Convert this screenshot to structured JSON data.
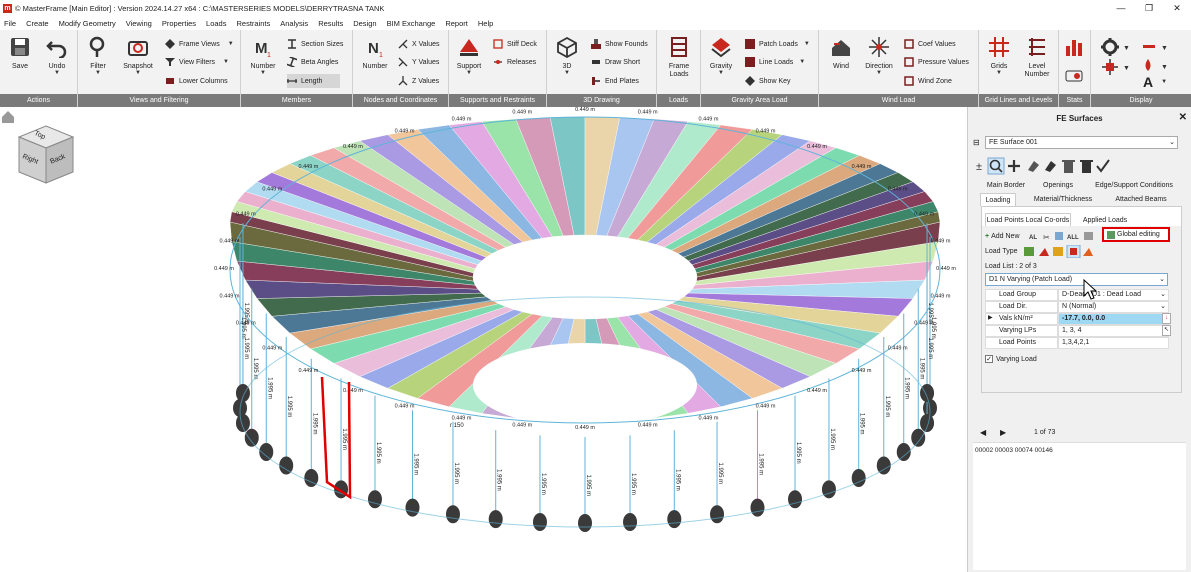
{
  "window": {
    "title": "© MasterFrame [Main Editor] : Version 2024.14.27 x64 : C:\\MASTERSERIES MODELS\\DERRYTRASNA TANK",
    "app_icon": "m",
    "controls": [
      "—",
      "❐",
      "✕"
    ]
  },
  "menu": [
    "File",
    "Create",
    "Modify Geometry",
    "Viewing",
    "Properties",
    "Loads",
    "Restraints",
    "Analysis",
    "Results",
    "Design",
    "BIM Exchange",
    "Report",
    "Help"
  ],
  "ribbon": {
    "groups": [
      "Actions",
      "Views and Filtering",
      "Members",
      "Nodes and Coordinates",
      "Supports and Restraints",
      "3D Drawing",
      "Loads",
      "Gravity Area Load",
      "Wind Load",
      "Grid Lines and Levels",
      "Stats",
      "Display"
    ],
    "actions": {
      "save": "Save",
      "undo": "Undo"
    },
    "views": {
      "filter": "Filter",
      "snapshot": "Snapshot",
      "frame_views": "Frame Views",
      "view_filters": "View Filters",
      "lower_columns": "Lower Columns"
    },
    "members": {
      "number": "Number",
      "section_sizes": "Section Sizes",
      "beta_angles": "Beta Angles",
      "length": "Length"
    },
    "nodes": {
      "number": "Number",
      "x_values": "X Values",
      "y_values": "Y Values",
      "z_values": "Z Values"
    },
    "supports": {
      "support": "Support",
      "stiff_deck": "Stiff Deck",
      "releases": "Releases"
    },
    "drawing3d": {
      "three_d": "3D",
      "show_founds": "Show Founds",
      "draw_short": "Draw Short",
      "end_plates": "End Plates"
    },
    "loads": {
      "frame_loads": "Frame Loads"
    },
    "gravity": {
      "gravity": "Gravity",
      "patch_loads": "Patch Loads",
      "line_loads": "Line Loads",
      "show_key": "Show Key"
    },
    "wind": {
      "wind": "Wind",
      "direction": "Direction",
      "coef_values": "Coef Values",
      "pressure_values": "Pressure Values",
      "wind_zone": "Wind Zone"
    },
    "grid": {
      "grids": "Grids",
      "level_number": "Level Number"
    },
    "display": {
      "a_label": "A"
    }
  },
  "viewport": {
    "view_cube": {
      "top": "Top",
      "right": "Right",
      "back": "Back"
    },
    "labels": {
      "top_width": "0.449 m",
      "height": "1.995 m",
      "radius": "r 150"
    }
  },
  "panel": {
    "title": "FE Surfaces",
    "surface_select": "FE Surface 001",
    "tabs_row1": [
      "Main Border",
      "Openings",
      "Edge/Support Conditions"
    ],
    "tabs_row2": [
      "Loading",
      "Material/Thickness",
      "Attached Beams"
    ],
    "tabs_row3": [
      "Load Points Local Co-ords",
      "Applied Loads"
    ],
    "add_new": "Add New",
    "global_editing": "Global editing",
    "load_type_label": "Load Type",
    "load_list_label": "Load List : 2 of 3",
    "load_list_value": "D1 N Varying (Patch Load)",
    "props": [
      {
        "key": "Load Group",
        "value": "D-Dead : D1 : Dead Load"
      },
      {
        "key": "Load Dir.",
        "value": "N (Normal)"
      },
      {
        "key": "Vals kN/m²",
        "value": "-17.7, 0.0, 0.0"
      },
      {
        "key": "Varying LPs",
        "value": "1, 3, 4"
      },
      {
        "key": "Load Points",
        "value": "1,3,4,2,1"
      }
    ],
    "varying_load": "Varying Load",
    "pager": "1 of 73",
    "ids": "00002 00003 00074 00146"
  },
  "colors": {
    "ribbon_bg": "#f2f2f2",
    "group_label_bg": "#7a7a7a",
    "accent_red": "#c8281e",
    "highlight_box": "#e00000",
    "selected_row": "#9fd8f2"
  }
}
